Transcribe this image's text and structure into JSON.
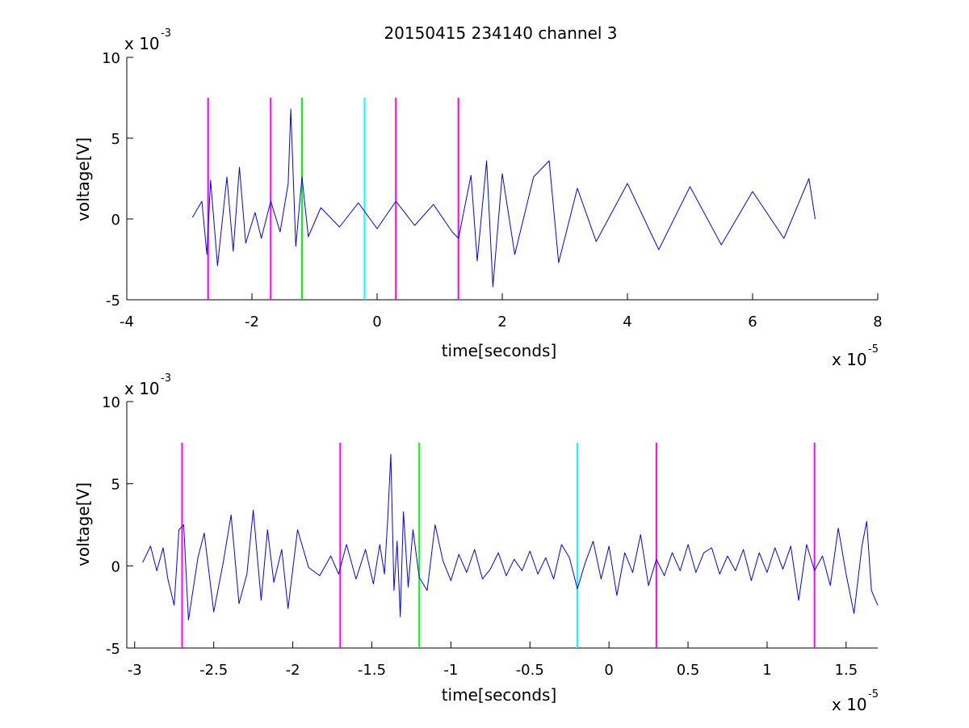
{
  "chart_data": [
    {
      "type": "line",
      "title": "20150415 234140 channel 3",
      "xlabel": "time[seconds]",
      "ylabel": "voltage[V]",
      "x_scale_label": "x 10",
      "x_scale_exponent": "-5",
      "y_scale_label": "x 10",
      "y_scale_exponent": "-3",
      "xlim": [
        -4,
        8
      ],
      "ylim": [
        -5,
        10
      ],
      "xticks": [
        -4,
        -2,
        0,
        2,
        4,
        6,
        8
      ],
      "xtick_labels": [
        "-4",
        "-2",
        "0",
        "2",
        "4",
        "6",
        "8"
      ],
      "yticks": [
        -5,
        0,
        5,
        10
      ],
      "ytick_labels": [
        "-5",
        "0",
        "5",
        "10"
      ],
      "grid": false,
      "series": [
        {
          "color": "#0000ff",
          "x": [
            -2.95,
            -2.8,
            -2.72,
            -2.66,
            -2.55,
            -2.4,
            -2.3,
            -2.2,
            -2.1,
            -1.95,
            -1.85,
            -1.7,
            -1.55,
            -1.42,
            -1.38,
            -1.3,
            -1.2,
            -1.1,
            -0.9,
            -0.6,
            -0.3,
            0,
            0.3,
            0.6,
            0.9,
            1.2,
            1.3,
            1.5,
            1.6,
            1.75,
            1.85,
            2.0,
            2.2,
            2.5,
            2.75,
            2.9,
            3.2,
            3.5,
            4.0,
            4.5,
            5.0,
            5.5,
            6.0,
            6.5,
            6.9,
            7.0
          ],
          "y": [
            0.1,
            1.1,
            -2.2,
            2.4,
            -2.9,
            2.6,
            -2.0,
            3.2,
            -1.5,
            0.4,
            -1.2,
            1.1,
            -0.8,
            2.2,
            6.8,
            -1.7,
            2.6,
            -1.1,
            0.7,
            -0.5,
            1.0,
            -0.6,
            1.1,
            -0.4,
            0.9,
            -0.8,
            -1.2,
            2.7,
            -2.6,
            3.6,
            -4.2,
            2.8,
            -2.2,
            2.6,
            3.6,
            -2.7,
            1.9,
            -1.4,
            2.2,
            -1.9,
            2.0,
            -1.6,
            1.7,
            -1.2,
            2.5,
            0.0
          ]
        }
      ],
      "events": [
        {
          "x": -2.7,
          "color": "#ff00ff"
        },
        {
          "x": -1.7,
          "color": "#ff00ff"
        },
        {
          "x": -1.2,
          "color": "#00ff00"
        },
        {
          "x": -0.2,
          "color": "#00ffff"
        },
        {
          "x": 0.3,
          "color": "#ff00ff"
        },
        {
          "x": 1.3,
          "color": "#ff00ff"
        }
      ],
      "event_range": [
        -5,
        7.5
      ]
    },
    {
      "type": "line",
      "title": "",
      "xlabel": "time[seconds]",
      "ylabel": "voltage[V]",
      "x_scale_label": "x 10",
      "x_scale_exponent": "-5",
      "y_scale_label": "x 10",
      "y_scale_exponent": "-3",
      "xlim": [
        -3.05,
        1.7
      ],
      "ylim": [
        -5,
        10
      ],
      "xticks": [
        -3,
        -2.5,
        -2,
        -1.5,
        -1,
        -0.5,
        0,
        0.5,
        1,
        1.5
      ],
      "xtick_labels": [
        "-3",
        "-2.5",
        "-2",
        "-1.5",
        "-1",
        "-0.5",
        "0",
        "0.5",
        "1",
        "1.5"
      ],
      "yticks": [
        -5,
        0,
        5,
        10
      ],
      "ytick_labels": [
        "-5",
        "0",
        "5",
        "10"
      ],
      "grid": false,
      "series": [
        {
          "color": "#0000ff",
          "x": [
            -2.95,
            -2.9,
            -2.86,
            -2.82,
            -2.79,
            -2.75,
            -2.72,
            -2.69,
            -2.66,
            -2.6,
            -2.56,
            -2.5,
            -2.44,
            -2.39,
            -2.34,
            -2.29,
            -2.25,
            -2.2,
            -2.16,
            -2.12,
            -2.07,
            -2.03,
            -1.97,
            -1.9,
            -1.83,
            -1.76,
            -1.71,
            -1.66,
            -1.6,
            -1.54,
            -1.49,
            -1.45,
            -1.42,
            -1.4,
            -1.38,
            -1.36,
            -1.34,
            -1.32,
            -1.3,
            -1.27,
            -1.24,
            -1.2,
            -1.15,
            -1.1,
            -1.05,
            -1.0,
            -0.95,
            -0.9,
            -0.85,
            -0.8,
            -0.75,
            -0.7,
            -0.65,
            -0.6,
            -0.55,
            -0.5,
            -0.45,
            -0.4,
            -0.35,
            -0.3,
            -0.25,
            -0.2,
            -0.15,
            -0.1,
            -0.05,
            0.0,
            0.05,
            0.1,
            0.15,
            0.2,
            0.25,
            0.3,
            0.35,
            0.4,
            0.45,
            0.5,
            0.55,
            0.6,
            0.65,
            0.7,
            0.75,
            0.8,
            0.85,
            0.9,
            0.95,
            1.0,
            1.05,
            1.1,
            1.15,
            1.2,
            1.25,
            1.3,
            1.35,
            1.4,
            1.45,
            1.5,
            1.55,
            1.6,
            1.63,
            1.66,
            1.7
          ],
          "y": [
            0.2,
            1.2,
            -0.3,
            1.1,
            -0.8,
            -2.4,
            2.2,
            2.5,
            -3.3,
            0.5,
            2.0,
            -2.8,
            0.2,
            3.1,
            -2.3,
            -0.5,
            3.4,
            -2.1,
            2.2,
            -1.0,
            1.0,
            -2.6,
            2.2,
            -0.1,
            -0.6,
            0.6,
            -0.5,
            1.3,
            -0.8,
            1.0,
            -1.1,
            1.3,
            -0.5,
            2.8,
            6.8,
            -1.5,
            1.5,
            -3.1,
            3.3,
            -1.3,
            2.2,
            -0.7,
            -1.5,
            2.5,
            0.3,
            -0.9,
            0.7,
            -0.4,
            1.0,
            -0.8,
            -0.2,
            0.8,
            -0.6,
            0.4,
            -0.3,
            0.9,
            -0.5,
            0.5,
            -0.8,
            1.3,
            0.5,
            -1.4,
            0.2,
            1.5,
            -0.8,
            1.2,
            -1.8,
            0.8,
            -0.4,
            1.9,
            -1.2,
            0.4,
            -0.6,
            0.8,
            -0.3,
            1.3,
            -0.4,
            0.8,
            1.1,
            -0.5,
            0.6,
            -0.3,
            1.0,
            -0.9,
            0.8,
            -0.4,
            1.1,
            -0.2,
            1.2,
            -2.1,
            1.3,
            -0.3,
            0.6,
            -1.2,
            2.3,
            -0.5,
            -2.9,
            1.2,
            2.7,
            -1.5,
            -2.4
          ]
        }
      ],
      "events": [
        {
          "x": -2.7,
          "color": "#ff00ff"
        },
        {
          "x": -1.7,
          "color": "#ff00ff"
        },
        {
          "x": -1.2,
          "color": "#00ff00"
        },
        {
          "x": -0.2,
          "color": "#00ffff"
        },
        {
          "x": 0.3,
          "color": "#ff00ff"
        },
        {
          "x": 1.3,
          "color": "#ff00ff"
        }
      ],
      "event_range": [
        -5,
        7.5
      ]
    }
  ]
}
